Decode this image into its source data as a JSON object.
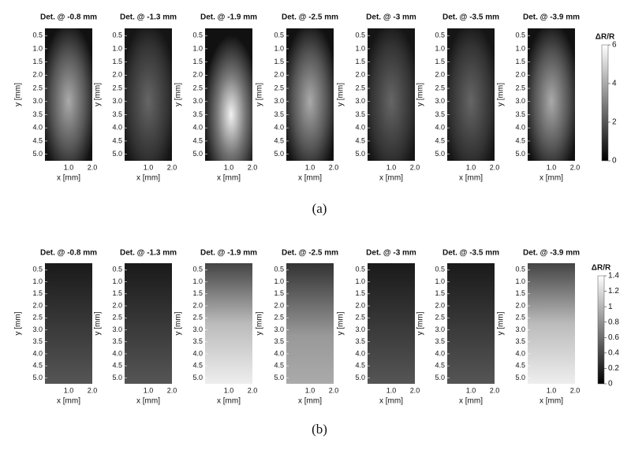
{
  "axes": {
    "yticks": [
      "0.5",
      "1.0",
      "1.5",
      "2.0",
      "2.5",
      "3.0",
      "3.5",
      "4.0",
      "4.5",
      "5.0"
    ],
    "xticks": [
      "1.0",
      "2.0"
    ],
    "xlabel": "x [mm]",
    "ylabel": "y [mm]"
  },
  "figures": [
    {
      "caption": "(a)",
      "colorbar": {
        "label": "ΔR/R",
        "ticks": [
          "0",
          "2",
          "4",
          "6"
        ]
      },
      "panels": [
        {
          "title": "Det. @ -0.8 mm"
        },
        {
          "title": "Det. @ -1.3 mm"
        },
        {
          "title": "Det. @ -1.9 mm"
        },
        {
          "title": "Det. @ -2.5 mm"
        },
        {
          "title": "Det. @ -3 mm"
        },
        {
          "title": "Det. @ -3.5 mm"
        },
        {
          "title": "Det. @ -3.9 mm"
        }
      ]
    },
    {
      "caption": "(b)",
      "colorbar": {
        "label": "ΔR/R",
        "ticks": [
          "0",
          "0.2",
          "0.4",
          "0.6",
          "0.8",
          "1",
          "1.2",
          "1.4"
        ]
      },
      "panels": [
        {
          "title": "Det. @ -0.8 mm"
        },
        {
          "title": "Det. @ -1.3 mm"
        },
        {
          "title": "Det. @ -1.9 mm"
        },
        {
          "title": "Det. @ -2.5 mm"
        },
        {
          "title": "Det. @ -3 mm"
        },
        {
          "title": "Det. @ -3.5 mm"
        },
        {
          "title": "Det. @ -3.9 mm"
        }
      ]
    }
  ]
}
